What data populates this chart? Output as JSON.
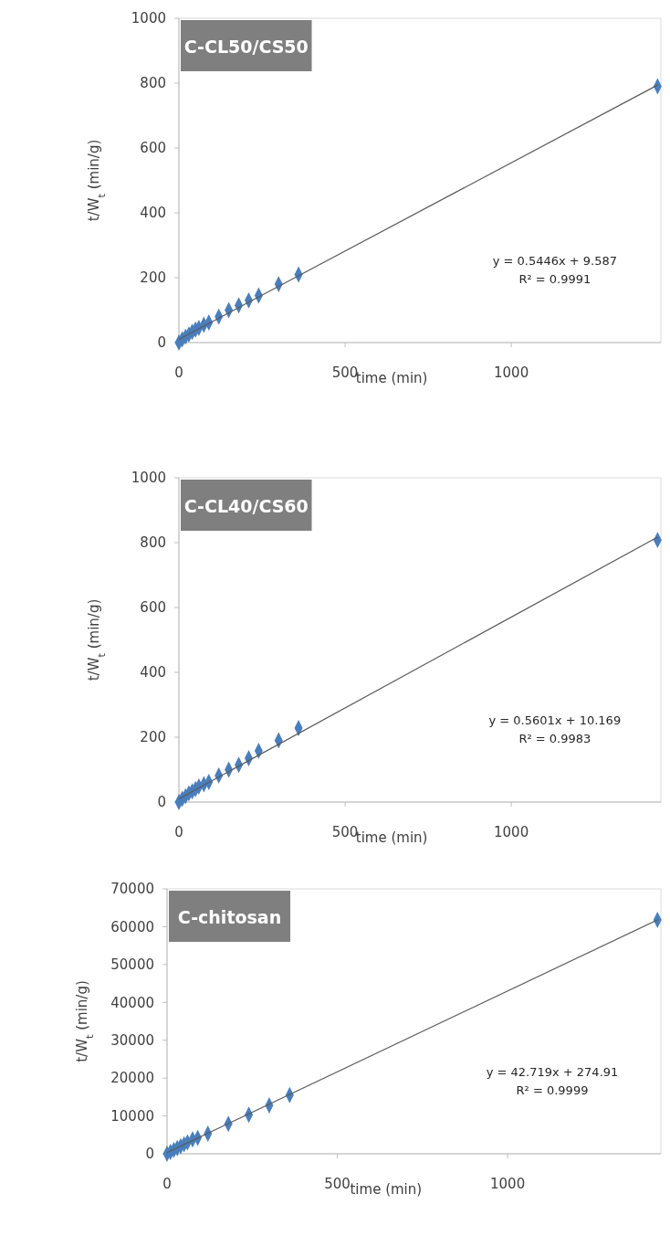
{
  "chart_data": [
    {
      "type": "scatter",
      "title": "C-CL50/CS50",
      "xlabel": "time (min)",
      "ylabel": "t/W$_{t}$ (min/g)",
      "xlim": [
        0,
        1450
      ],
      "xticks": [
        0,
        500,
        1000
      ],
      "ylim": [
        0,
        1000
      ],
      "yticks": [
        0,
        200,
        400,
        600,
        800,
        1000
      ],
      "grid": false,
      "marker": "diamond",
      "annotations": [
        "y = 0.5446x + 9.587",
        "R² = 0.9991"
      ],
      "series": [
        {
          "color": "#4a7ebb",
          "x": [
            0,
            10,
            20,
            30,
            40,
            50,
            60,
            75,
            90,
            120,
            150,
            180,
            210,
            240,
            300,
            360,
            1440
          ],
          "values": [
            0,
            10,
            18,
            25,
            33,
            40,
            45,
            55,
            62,
            80,
            100,
            115,
            130,
            145,
            180,
            210,
            790
          ]
        },
        {
          "type": "line",
          "color": "#595959",
          "marker": "none",
          "x": [
            0,
            1440
          ],
          "values": [
            10,
            794
          ]
        }
      ]
    },
    {
      "type": "scatter",
      "title": "C-CL40/CS60",
      "xlabel": "time (min)",
      "ylabel": "t/W$_{t}$ (min/g)",
      "xlim": [
        0,
        1450
      ],
      "xticks": [
        0,
        500,
        1000
      ],
      "ylim": [
        0,
        1000
      ],
      "yticks": [
        0,
        200,
        400,
        600,
        800,
        1000
      ],
      "grid": false,
      "marker": "diamond",
      "annotations": [
        "y = 0.5601x + 10.169",
        "R² = 0.9983"
      ],
      "series": [
        {
          "color": "#4a7ebb",
          "x": [
            0,
            10,
            20,
            30,
            40,
            50,
            60,
            75,
            90,
            120,
            150,
            180,
            210,
            240,
            300,
            360,
            1440
          ],
          "values": [
            0,
            10,
            18,
            27,
            33,
            40,
            48,
            55,
            62,
            82,
            100,
            115,
            135,
            158,
            190,
            228,
            808
          ]
        },
        {
          "type": "line",
          "color": "#595959",
          "marker": "none",
          "x": [
            0,
            1440
          ],
          "values": [
            10,
            817
          ]
        }
      ]
    },
    {
      "type": "scatter",
      "title": "C-chitosan",
      "xlabel": "time (min)",
      "ylabel": "t/W$_{t}$ (min/g)",
      "xlim": [
        0,
        1450
      ],
      "xticks": [
        0,
        500,
        1000
      ],
      "ylim": [
        0,
        70000
      ],
      "yticks": [
        0,
        10000,
        20000,
        30000,
        40000,
        50000,
        60000,
        70000
      ],
      "grid": false,
      "marker": "diamond",
      "annotations": [
        "y = 42.719x + 274.91",
        "R² = 0.9999"
      ],
      "series": [
        {
          "color": "#4a7ebb",
          "x": [
            0,
            10,
            20,
            30,
            40,
            50,
            60,
            75,
            90,
            120,
            180,
            240,
            300,
            360,
            1440
          ],
          "values": [
            0,
            500,
            1000,
            1500,
            2000,
            2500,
            3000,
            3800,
            4200,
            5300,
            7900,
            10300,
            12800,
            15500,
            61800
          ]
        },
        {
          "type": "line",
          "color": "#595959",
          "marker": "none",
          "x": [
            0,
            1440
          ],
          "values": [
            300,
            61800
          ]
        }
      ]
    }
  ]
}
